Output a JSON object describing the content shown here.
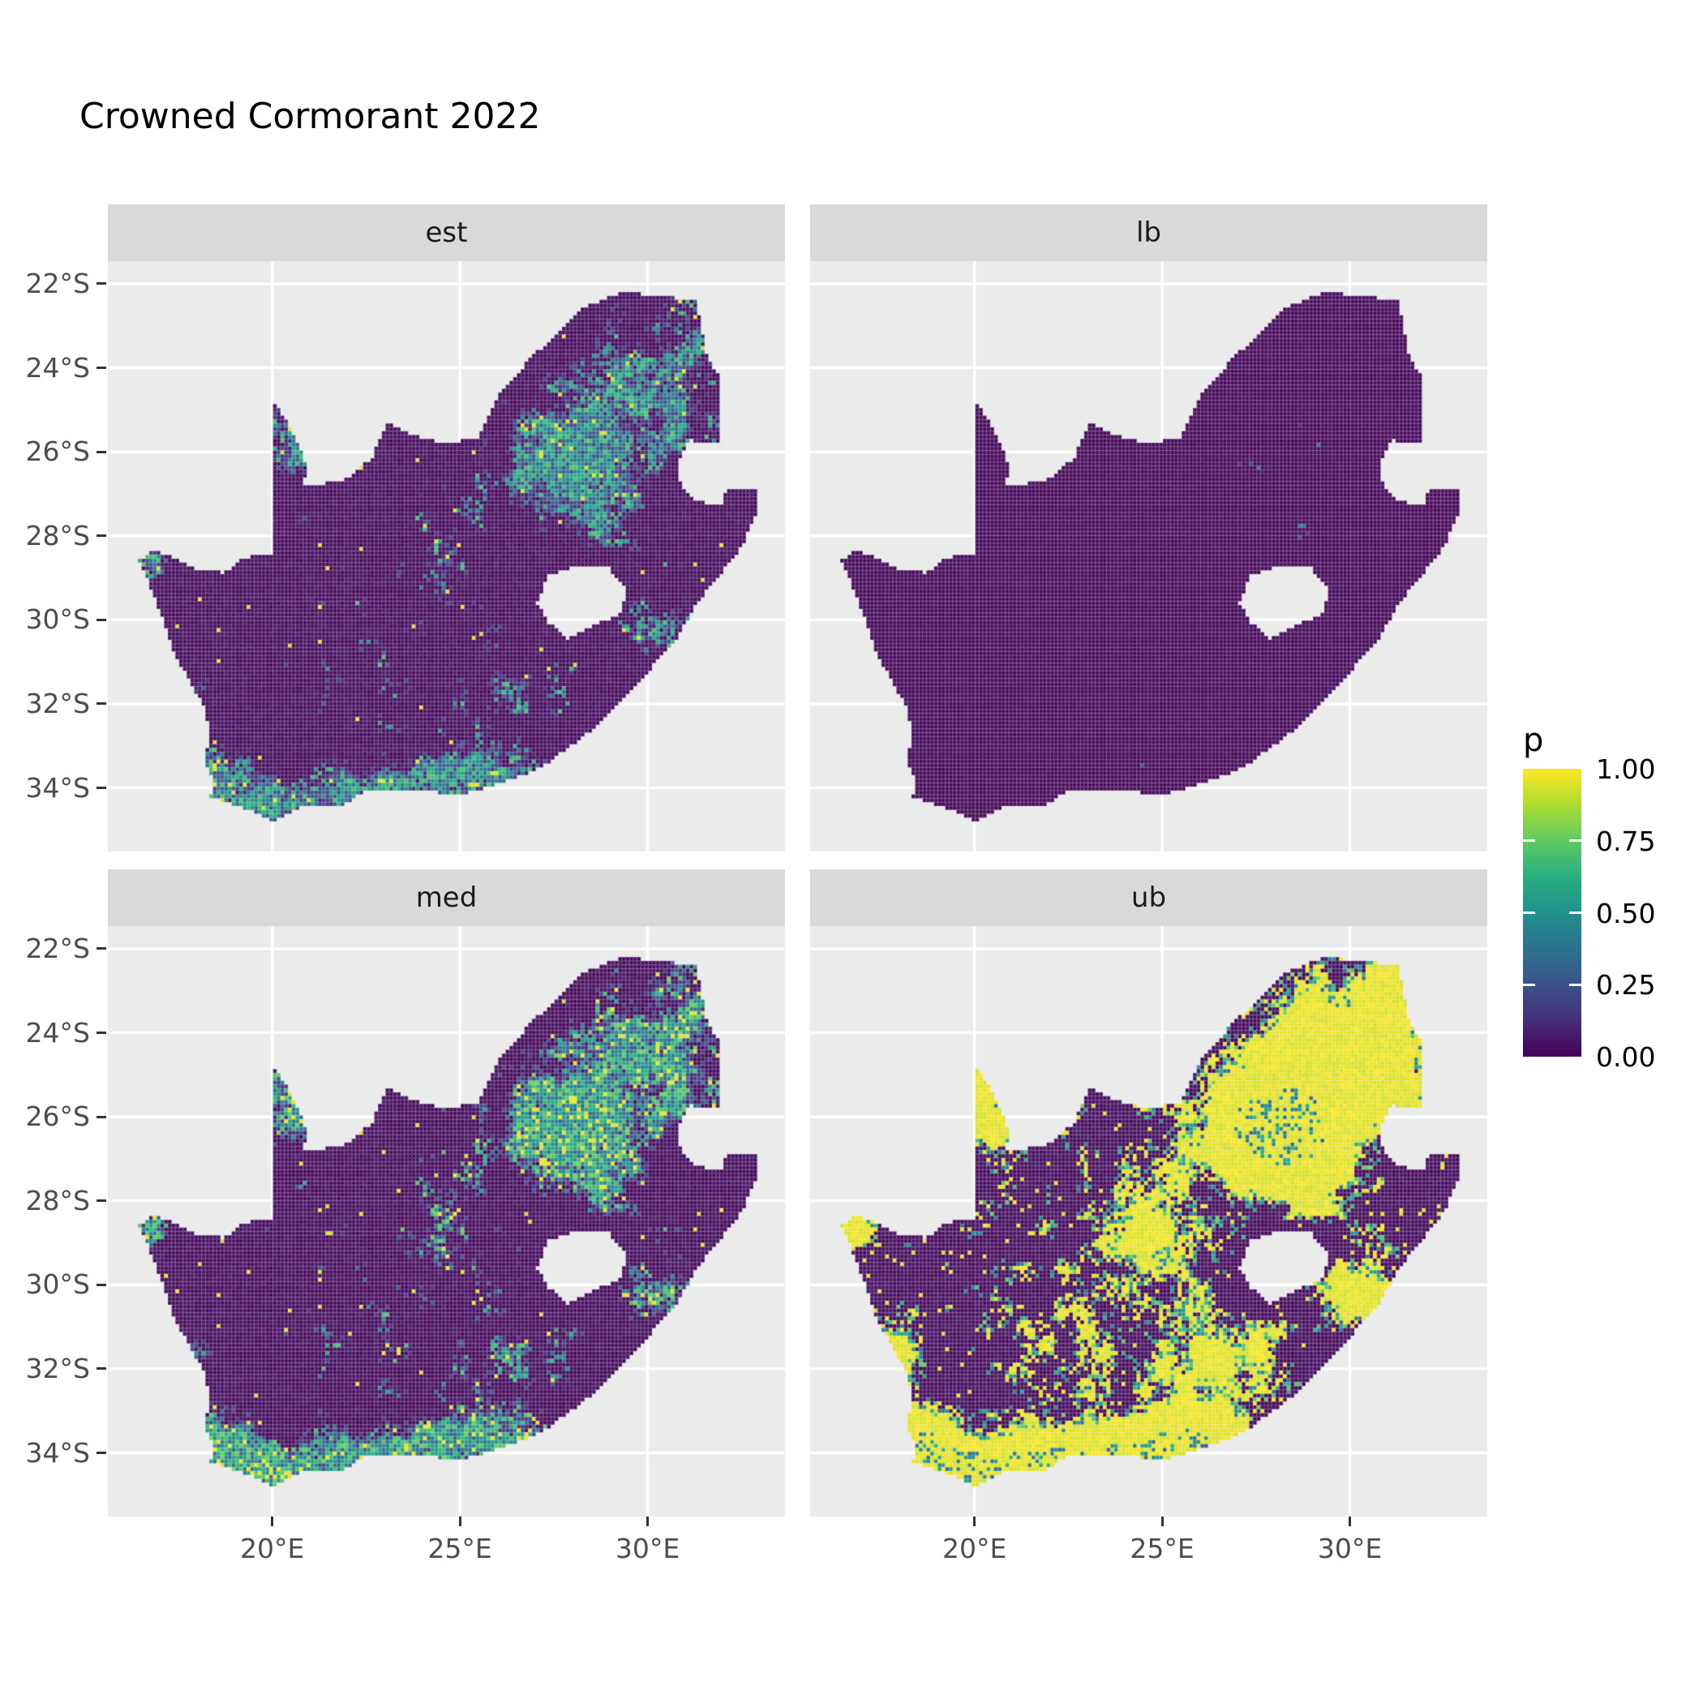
{
  "title": "Crowned Cormorant 2022",
  "colors": {
    "background": "#FFFFFF",
    "panel_bg": "#EBEBEB",
    "strip_bg": "#D9D9D9",
    "gridline": "#FFFFFF",
    "axis_text": "#4D4D4D",
    "strip_text": "#1A1A1A",
    "tick_mark": "#333333",
    "cell_mesh": "rgba(255,255,255,0.20)",
    "viridis": [
      "#440154",
      "#472D7B",
      "#3B528B",
      "#2C728E",
      "#21918C",
      "#28AE80",
      "#5EC962",
      "#ADDC30",
      "#FDE725"
    ]
  },
  "legend": {
    "title": "p",
    "tick_labels": [
      "1.00",
      "0.75",
      "0.50",
      "0.25",
      "0.00"
    ],
    "tick_values": [
      1.0,
      0.75,
      0.5,
      0.25,
      0.0
    ]
  },
  "chart_data": {
    "type": "heatmap",
    "title": "Crowned Cormorant 2022",
    "description": "Faceted raster maps of South Africa showing occupancy probability p (0-1, viridis palette) on a ~0.1 degree grid. Facets: est = estimate (sparse teal/green cells over dark purple, hotspots in Gauteng, south & west coast, Kgalagadi), lb = lower bound (almost entirely p~0), med = median (like est but brighter, more yellow on south coast), ub = upper bound (large saturated-yellow p~1 blobs over Gauteng, Limpopo, south coast and scattered patches).",
    "facets": [
      "est",
      "lb",
      "med",
      "ub"
    ],
    "variable": "p",
    "value_range": [
      0,
      1
    ],
    "palette": "viridis",
    "region": "South Africa (Lesotho hole; Eswatini notch excluded)",
    "x_axis": {
      "tick_labels": [
        "20°E",
        "25°E",
        "30°E"
      ],
      "tick_values": [
        20,
        25,
        30
      ],
      "range": [
        15.62,
        33.66
      ]
    },
    "y_axis": {
      "tick_labels": [
        "22°S",
        "24°S",
        "26°S",
        "28°S",
        "30°S",
        "32°S",
        "34°S"
      ],
      "tick_values": [
        22,
        24,
        26,
        28,
        30,
        32,
        34
      ],
      "range": [
        21.46,
        35.51
      ]
    },
    "grid_step_deg": {
      "lon": 0.1,
      "lat": 0.092
    },
    "outline": [
      [
        16.45,
        -28.58
      ],
      [
        16.75,
        -29.2
      ],
      [
        17.05,
        -29.9
      ],
      [
        17.3,
        -30.6
      ],
      [
        17.75,
        -31.4
      ],
      [
        18.2,
        -32.1
      ],
      [
        18.35,
        -32.75
      ],
      [
        18.2,
        -33.3
      ],
      [
        18.45,
        -33.9
      ],
      [
        18.35,
        -34.2
      ],
      [
        18.85,
        -34.38
      ],
      [
        19.6,
        -34.6
      ],
      [
        20.0,
        -34.8
      ],
      [
        20.9,
        -34.42
      ],
      [
        21.9,
        -34.4
      ],
      [
        22.55,
        -34.05
      ],
      [
        23.4,
        -34.1
      ],
      [
        24.2,
        -34.05
      ],
      [
        24.85,
        -34.2
      ],
      [
        25.65,
        -34.02
      ],
      [
        26.45,
        -33.78
      ],
      [
        27.15,
        -33.52
      ],
      [
        27.95,
        -33.0
      ],
      [
        28.6,
        -32.55
      ],
      [
        29.35,
        -31.85
      ],
      [
        30.05,
        -31.2
      ],
      [
        30.8,
        -30.4
      ],
      [
        31.35,
        -29.55
      ],
      [
        32.0,
        -28.85
      ],
      [
        32.55,
        -28.2
      ],
      [
        32.9,
        -27.45
      ],
      [
        32.9,
        -26.85
      ],
      [
        32.1,
        -26.85
      ],
      [
        31.95,
        -27.28
      ],
      [
        31.3,
        -27.18
      ],
      [
        30.9,
        -26.85
      ],
      [
        30.8,
        -26.25
      ],
      [
        31.1,
        -25.72
      ],
      [
        31.9,
        -25.83
      ],
      [
        31.9,
        -24.2
      ],
      [
        31.55,
        -23.65
      ],
      [
        31.3,
        -22.4
      ],
      [
        30.4,
        -22.3
      ],
      [
        29.35,
        -22.2
      ],
      [
        28.2,
        -22.6
      ],
      [
        27.6,
        -23.2
      ],
      [
        26.9,
        -23.75
      ],
      [
        26.0,
        -24.7
      ],
      [
        25.5,
        -25.65
      ],
      [
        24.75,
        -25.8
      ],
      [
        24.0,
        -25.68
      ],
      [
        23.05,
        -25.32
      ],
      [
        22.65,
        -26.15
      ],
      [
        21.9,
        -26.7
      ],
      [
        20.85,
        -26.82
      ],
      [
        20.9,
        -26.3
      ],
      [
        20.72,
        -25.85
      ],
      [
        20.45,
        -25.35
      ],
      [
        20.0,
        -24.77
      ],
      [
        19.98,
        -28.42
      ],
      [
        19.25,
        -28.52
      ],
      [
        18.75,
        -28.88
      ],
      [
        17.95,
        -28.78
      ],
      [
        17.35,
        -28.5
      ],
      [
        16.82,
        -28.35
      ]
    ],
    "holes": [
      [
        [
          27.05,
          -29.6
        ],
        [
          27.35,
          -28.95
        ],
        [
          28.1,
          -28.7
        ],
        [
          28.95,
          -28.75
        ],
        [
          29.45,
          -29.3
        ],
        [
          29.25,
          -29.85
        ],
        [
          28.55,
          -30.15
        ],
        [
          27.85,
          -30.45
        ],
        [
          27.35,
          -30.05
        ]
      ]
    ],
    "hotspots": [
      [
        28.0,
        -26.1,
        1.35,
        0.95,
        1.0
      ],
      [
        29.3,
        -23.8,
        1.3,
        0.85,
        0.5
      ],
      [
        30.9,
        -25.2,
        0.85,
        0.8,
        0.45
      ],
      [
        31.1,
        -23.2,
        0.6,
        0.9,
        0.4
      ],
      [
        20.5,
        -25.7,
        0.45,
        0.7,
        0.9
      ],
      [
        18.55,
        -33.9,
        0.6,
        0.5,
        1.0
      ],
      [
        19.6,
        -34.5,
        0.9,
        0.4,
        0.9
      ],
      [
        21.8,
        -34.2,
        1.4,
        0.5,
        0.75
      ],
      [
        24.5,
        -34.0,
        1.3,
        0.55,
        0.6
      ],
      [
        26.0,
        -33.7,
        0.9,
        0.6,
        0.55
      ],
      [
        17.9,
        -31.9,
        0.55,
        0.95,
        0.45
      ],
      [
        24.8,
        -28.7,
        0.9,
        0.75,
        0.3
      ],
      [
        30.3,
        -30.2,
        0.65,
        0.65,
        0.4
      ],
      [
        28.9,
        -27.3,
        1.3,
        0.9,
        0.28
      ],
      [
        23.5,
        -30.8,
        3.0,
        2.3,
        0.17
      ],
      [
        16.8,
        -28.6,
        0.35,
        0.3,
        0.6
      ],
      [
        26.6,
        -31.7,
        1.2,
        0.8,
        0.3
      ]
    ],
    "facet_models": {
      "est": {
        "a": 0.8,
        "o": 0.012,
        "pmin": 0.2,
        "prange": 0.55,
        "yT": 0.96,
        "pY": 0.95,
        "a2": 1.05,
        "o2": 0.022,
        "smin": 0.05,
        "srange": 0.18,
        "base": 0.012,
        "bVar": 0.05,
        "rY": 0.996
      },
      "lb": {
        "a": 0.085,
        "o": 0.0045,
        "pmin": 0.15,
        "prange": 0.3,
        "yT": 2.0,
        "pY": 0.95,
        "a2": 0.11,
        "o2": 0.006,
        "smin": 0.05,
        "srange": 0.1,
        "base": 0.008,
        "bVar": 0.025,
        "rY": 2.0
      },
      "med": {
        "a": 0.92,
        "o": 0.02,
        "pmin": 0.3,
        "prange": 0.55,
        "yT": 0.9,
        "pY": 0.97,
        "a2": 1.2,
        "o2": 0.03,
        "smin": 0.07,
        "srange": 0.2,
        "base": 0.012,
        "bVar": 0.05,
        "rY": 0.993
      },
      "ub": {
        "a": 1.75,
        "o": 0.06,
        "pmin": 0.93,
        "prange": 0.07,
        "yT": 2.0,
        "pY": 0.97,
        "a2": 2.05,
        "o2": 0.1,
        "smin": 0.35,
        "srange": 0.45,
        "base": 0.012,
        "bVar": 0.05,
        "rY": 0.968,
        "coreSpeck": 0.74
      }
    }
  }
}
